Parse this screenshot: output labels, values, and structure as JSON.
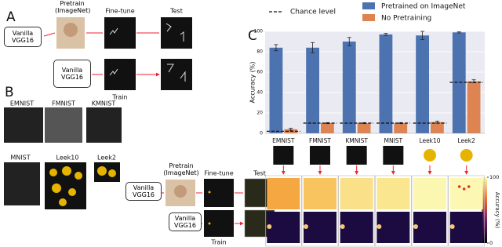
{
  "panels": {
    "a": {
      "letter": "A",
      "pretrain": "Pretrain (ImageNet)",
      "finetune": "Fine-tune",
      "test": "Test",
      "model": "Vanilla VGG16",
      "model_2": "Vanilla VGG16",
      "train": "Train"
    },
    "b": {
      "letter": "B",
      "datasets": [
        "EMNIST",
        "FMNIST",
        "KMNIST",
        "MNIST",
        "Leek10",
        "Leek2"
      ]
    },
    "c": {
      "letter": "C"
    },
    "d": {
      "pretrain": "Pretrain (ImageNet)",
      "finetune": "Fine-tune",
      "test": "Test",
      "model": "Vanilla VGG16",
      "model_2": "Vanilla VGG16",
      "train": "Train",
      "colorbar": {
        "label": "Accuracy (%)",
        "ticks": [
          0,
          100
        ]
      }
    }
  },
  "chart_data": {
    "type": "bar",
    "ylabel": "Accuracy (%)",
    "categories": [
      "EMNIST",
      "FMNIST",
      "KMNIST",
      "MNIST",
      "Leek10",
      "Leek2"
    ],
    "series": [
      {
        "name": "Pretrained on ImageNet",
        "color": "#4c72b0",
        "values": [
          84,
          84,
          90,
          97,
          96,
          99
        ],
        "errors": [
          3,
          5,
          4,
          1,
          4,
          0.5
        ]
      },
      {
        "name": "No Pretraining",
        "color": "#dd8452",
        "values": [
          4,
          10,
          10,
          10,
          11,
          51
        ],
        "errors": [
          1,
          0.5,
          0.5,
          0.5,
          1,
          1.5
        ]
      }
    ],
    "chance": {
      "name": "Chance level",
      "values": [
        2,
        10,
        10,
        10,
        10,
        50
      ]
    },
    "ylim": [
      0,
      100
    ],
    "yticks": [
      0,
      20,
      40,
      60,
      80,
      100
    ],
    "grid": true
  }
}
